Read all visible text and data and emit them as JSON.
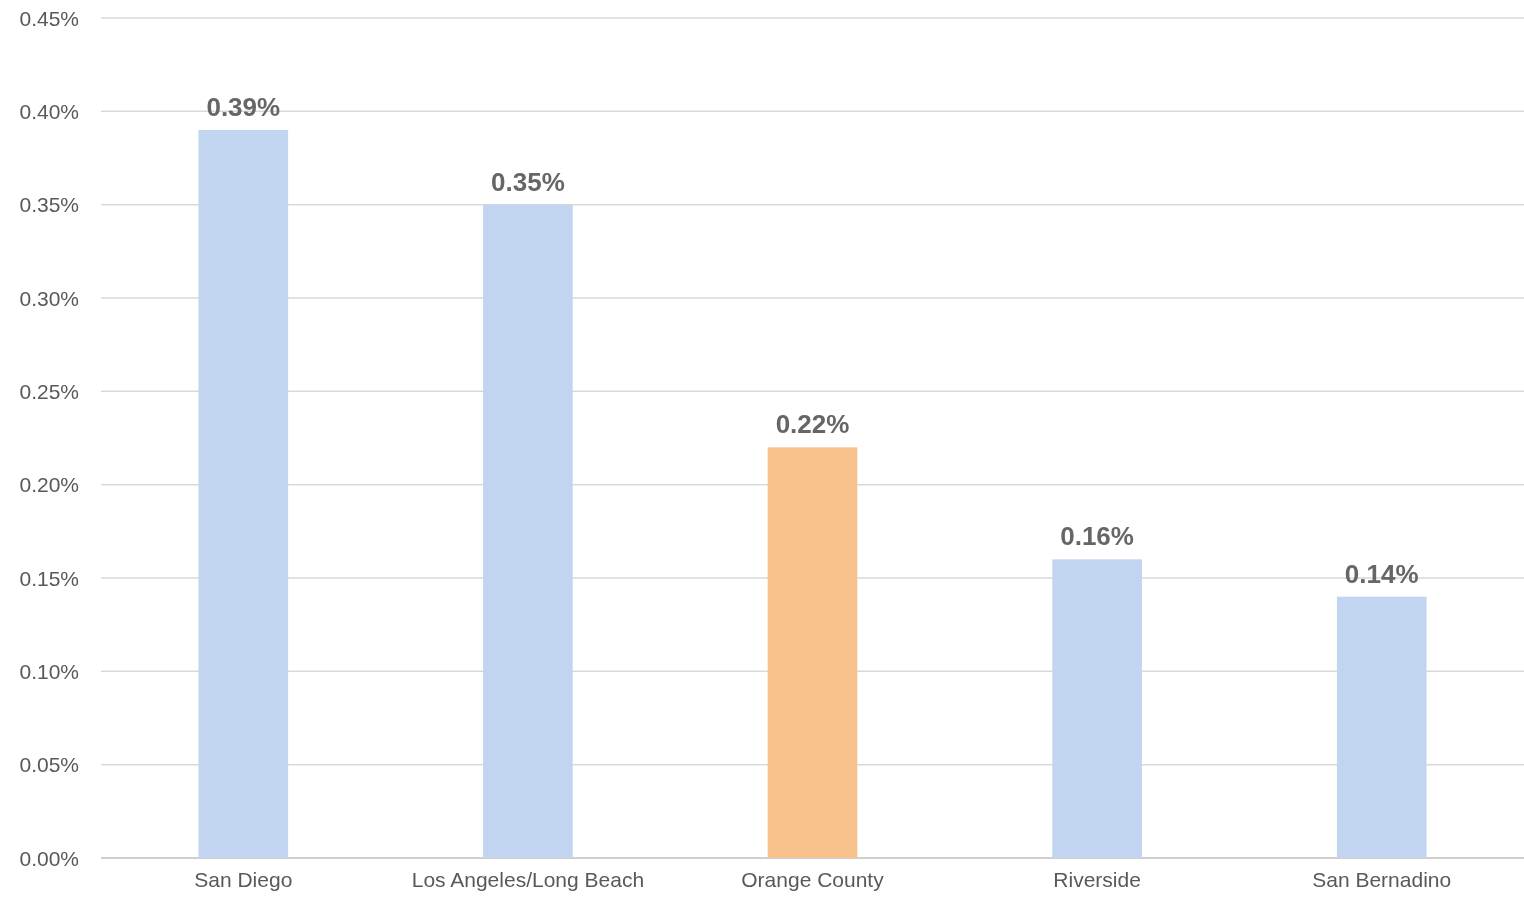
{
  "chart_data": {
    "type": "bar",
    "categories": [
      "San Diego",
      "Los Angeles/Long Beach",
      "Orange County",
      "Riverside",
      "San Bernadino"
    ],
    "values": [
      0.39,
      0.35,
      0.22,
      0.16,
      0.14
    ],
    "colors": [
      "#c2d5f0",
      "#c2d5f0",
      "#f8c28c",
      "#c2d5f0",
      "#c2d5f0"
    ],
    "value_labels": [
      "0.39%",
      "0.35%",
      "0.22%",
      "0.16%",
      "0.14%"
    ],
    "ylim": [
      0,
      0.45
    ],
    "yticks": [
      {
        "value": 0,
        "label": "0.00%"
      },
      {
        "value": 0.05,
        "label": "0.05%"
      },
      {
        "value": 0.1,
        "label": "0.10%"
      },
      {
        "value": 0.15,
        "label": "0.15%"
      },
      {
        "value": 0.2,
        "label": "0.20%"
      },
      {
        "value": 0.25,
        "label": "0.25%"
      },
      {
        "value": 0.3,
        "label": "0.30%"
      },
      {
        "value": 0.35,
        "label": "0.35%"
      },
      {
        "value": 0.4,
        "label": "0.40%"
      },
      {
        "value": 0.45,
        "label": "0.45%"
      }
    ],
    "grid": "y"
  }
}
